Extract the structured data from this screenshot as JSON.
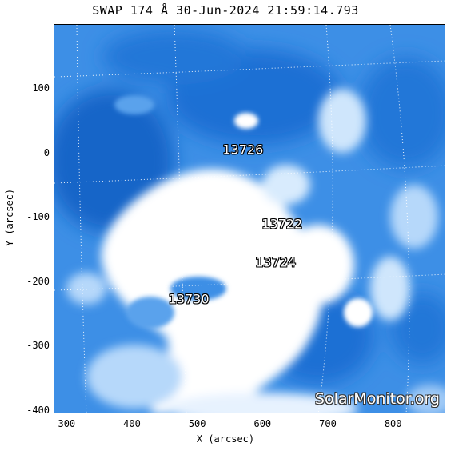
{
  "title": "SWAP 174 Å 30-Jun-2024 21:59:14.793",
  "x_axis": {
    "label": "X (arcsec)",
    "range": [
      280,
      880
    ],
    "ticks": [
      300,
      400,
      500,
      600,
      700,
      800
    ]
  },
  "y_axis": {
    "label": "Y (arcsec)",
    "range": [
      -405,
      200
    ],
    "ticks": [
      100,
      0,
      -100,
      -200,
      -300,
      -400
    ]
  },
  "active_regions": [
    {
      "label": "13726",
      "x": 570,
      "y": 5
    },
    {
      "label": "13722",
      "x": 630,
      "y": -110
    },
    {
      "label": "13724",
      "x": 620,
      "y": -170
    },
    {
      "label": "13730",
      "x": 487,
      "y": -227
    }
  ],
  "watermark": "SolarMonitor.org",
  "colors": {
    "deep": "#1565c8",
    "mid": "#3d8fe6",
    "light": "#9fc9f6",
    "bright": "#ffffff"
  }
}
